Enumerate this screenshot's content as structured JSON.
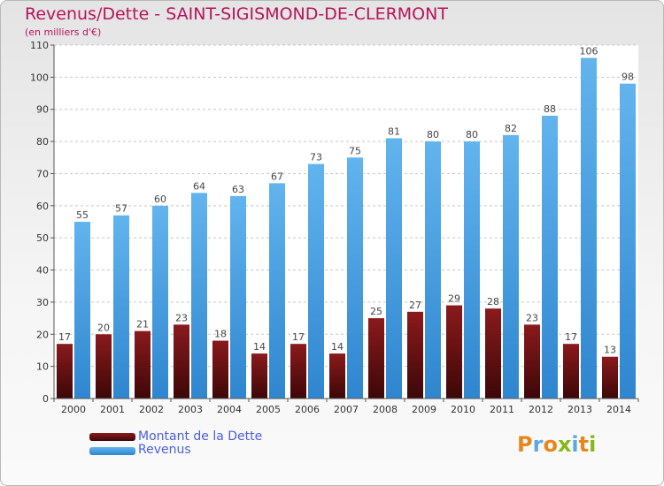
{
  "header": {
    "title": "Revenus/Dette - SAINT-SIGISMOND-DE-CLERMONT",
    "subtitle": "(en milliers d'€)"
  },
  "legend": {
    "items": [
      {
        "label": "Montant de la Dette",
        "color": "#6b0f10"
      },
      {
        "label": "Revenus",
        "color": "#3d9be3"
      }
    ]
  },
  "logo": {
    "text": "Proxiti",
    "letter_colors": [
      "#e8861a",
      "#5aa9e6",
      "#e8861a",
      "#86b817",
      "#5aa9e6",
      "#e8861a",
      "#86b817"
    ]
  },
  "chart_data": {
    "type": "bar",
    "categories": [
      "2000",
      "2001",
      "2002",
      "2003",
      "2004",
      "2005",
      "2006",
      "2007",
      "2008",
      "2009",
      "2010",
      "2011",
      "2012",
      "2013",
      "2014"
    ],
    "series": [
      {
        "name": "Montant de la Dette",
        "values": [
          17,
          20,
          21,
          23,
          18,
          14,
          17,
          14,
          25,
          27,
          29,
          28,
          23,
          17,
          13
        ],
        "color": "#6b0f10"
      },
      {
        "name": "Revenus",
        "values": [
          55,
          57,
          60,
          64,
          63,
          67,
          73,
          75,
          81,
          80,
          80,
          82,
          88,
          106,
          98
        ],
        "color": "#3d9be3"
      }
    ],
    "yticks": [
      0,
      10,
      20,
      30,
      40,
      50,
      60,
      70,
      80,
      90,
      100,
      110
    ],
    "ylim": [
      0,
      110
    ],
    "grid": true,
    "legend_position": "bottom-left"
  }
}
